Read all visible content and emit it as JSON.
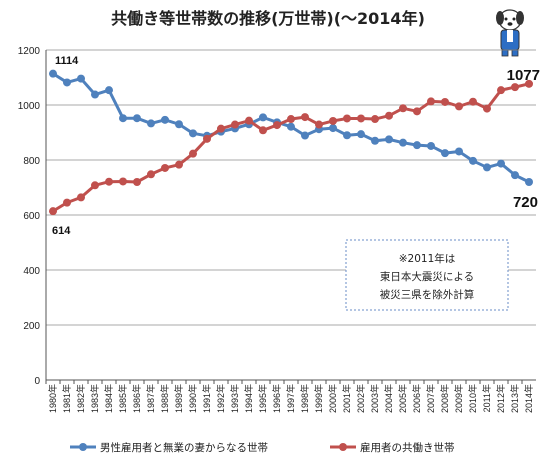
{
  "chart_data": {
    "type": "line",
    "title": "共働き等世帯数の推移(万世帯)(〜2014年)",
    "xlabel": "",
    "ylabel": "",
    "ylim": [
      0,
      1200
    ],
    "yticks": [
      "0",
      "200",
      "400",
      "600",
      "800",
      "1000",
      "1200"
    ],
    "categories": [
      "1980年",
      "1981年",
      "1982年",
      "1983年",
      "1984年",
      "1985年",
      "1986年",
      "1987年",
      "1988年",
      "1989年",
      "1990年",
      "1991年",
      "1992年",
      "1993年",
      "1994年",
      "1995年",
      "1996年",
      "1997年",
      "1998年",
      "1999年",
      "2000年",
      "2001年",
      "2002年",
      "2003年",
      "2004年",
      "2005年",
      "2006年",
      "2007年",
      "2008年",
      "2009年",
      "2010年",
      "2011年",
      "2012年",
      "2013年",
      "2014年"
    ],
    "series": [
      {
        "name": "男性雇用者と無業の妻からなる世帯",
        "color": "#4f81bd",
        "values": [
          1114,
          1082,
          1096,
          1038,
          1054,
          952,
          952,
          933,
          946,
          930,
          897,
          888,
          903,
          915,
          930,
          955,
          937,
          921,
          889,
          912,
          916,
          890,
          894,
          870,
          875,
          863,
          854,
          851,
          825,
          831,
          797,
          773,
          787,
          745,
          720
        ]
      },
      {
        "name": "雇用者の共働き世帯",
        "color": "#c0504d",
        "values": [
          614,
          645,
          664,
          708,
          721,
          722,
          720,
          748,
          771,
          783,
          823,
          877,
          914,
          929,
          943,
          908,
          927,
          949,
          956,
          929,
          942,
          951,
          951,
          949,
          961,
          988,
          977,
          1013,
          1011,
          995,
          1012,
          987,
          1054,
          1065,
          1077
        ]
      }
    ],
    "annotations": {
      "blue_start": "1114",
      "red_start": "614",
      "blue_end": "720",
      "red_end": "1077",
      "note_line1": "※2011年は",
      "note_line2": "東日本大震災による",
      "note_line3": "被災三県を除外計算"
    },
    "grid": true,
    "legend": "bottom"
  },
  "mascot": "dog-mascot-icon"
}
